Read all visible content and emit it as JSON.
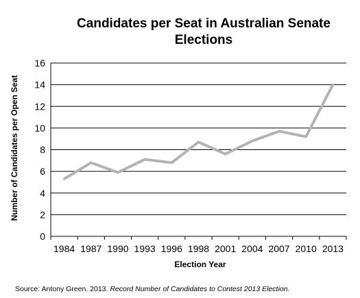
{
  "chart_data": {
    "type": "line",
    "title_lines": [
      "Candidates per Seat in Australian Senate",
      "Elections"
    ],
    "xlabel": "Election Year",
    "ylabel": "Number of Candidates per Open Seat",
    "categories": [
      "1984",
      "1987",
      "1990",
      "1993",
      "1996",
      "1998",
      "2001",
      "2004",
      "2007",
      "2010",
      "2013"
    ],
    "series": [
      {
        "values": [
          5.3,
          6.8,
          5.9,
          7.1,
          6.8,
          8.7,
          7.6,
          8.8,
          9.7,
          9.2,
          14.0
        ]
      }
    ],
    "ylim": [
      0,
      16
    ],
    "yticks": [
      0,
      2,
      4,
      6,
      8,
      10,
      12,
      14,
      16
    ],
    "grid": true,
    "legend": "none",
    "line_color": "#b3b3b3",
    "grid_color": "#000000"
  },
  "source": {
    "prefix": "Source: Antony Green. 2013.  ",
    "italic": "Record Number of Candidates to Contest 2013 Election."
  }
}
